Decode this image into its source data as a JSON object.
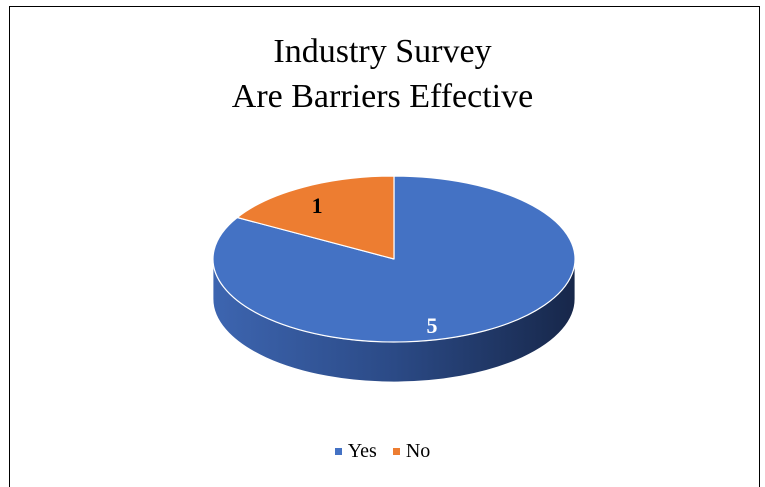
{
  "chart_data": {
    "type": "pie",
    "title": [
      "Industry Survey",
      "Are Barriers Effective"
    ],
    "categories": [
      "Yes",
      "No"
    ],
    "values": [
      5,
      1
    ],
    "data_labels": [
      "5",
      "1"
    ],
    "colors": [
      "#4472C4",
      "#ED7D31"
    ],
    "legend_placement": "bottom",
    "three_d": true
  }
}
